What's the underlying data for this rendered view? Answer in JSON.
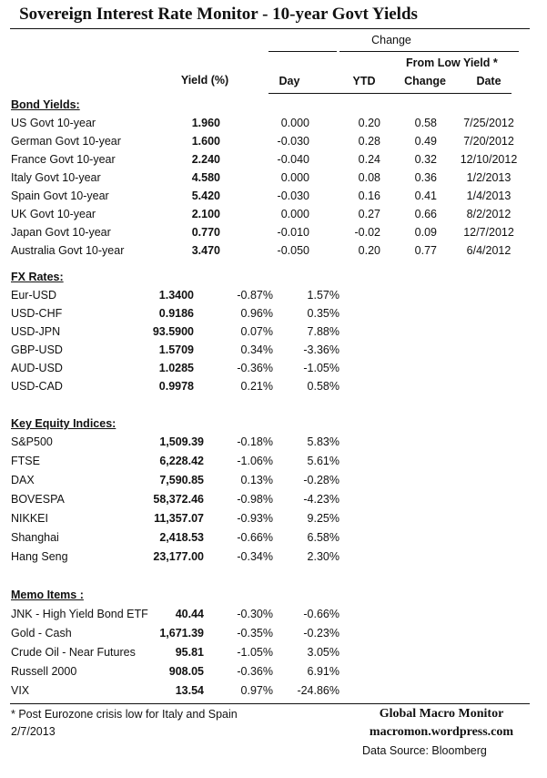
{
  "title": "Sovereign Interest Rate Monitor - 10-year Govt Yields",
  "headers": {
    "change_group": "Change",
    "from_low": "From Low Yield  *",
    "yield": "Yield (%)",
    "day": "Day",
    "ytd": "YTD",
    "low_change": "Change",
    "low_date": "Date"
  },
  "bond_yields": {
    "label": "Bond Yields:",
    "rows": [
      {
        "name": "US Govt 10-year",
        "yield": "1.960",
        "day": "0.000",
        "ytd": "0.20",
        "low_change": "0.58",
        "low_date": "7/25/2012"
      },
      {
        "name": "German Govt 10-year",
        "yield": "1.600",
        "day": "-0.030",
        "ytd": "0.28",
        "low_change": "0.49",
        "low_date": "7/20/2012"
      },
      {
        "name": "France Govt 10-year",
        "yield": "2.240",
        "day": "-0.040",
        "ytd": "0.24",
        "low_change": "0.32",
        "low_date": "12/10/2012"
      },
      {
        "name": "Italy Govt 10-year",
        "yield": "4.580",
        "day": "0.000",
        "ytd": "0.08",
        "low_change": "0.36",
        "low_date": "1/2/2013"
      },
      {
        "name": "Spain Govt 10-year",
        "yield": "5.420",
        "day": "-0.030",
        "ytd": "0.16",
        "low_change": "0.41",
        "low_date": "1/4/2013"
      },
      {
        "name": "UK Govt 10-year",
        "yield": "2.100",
        "day": "0.000",
        "ytd": "0.27",
        "low_change": "0.66",
        "low_date": "8/2/2012"
      },
      {
        "name": "Japan Govt 10-year",
        "yield": "0.770",
        "day": "-0.010",
        "ytd": "-0.02",
        "low_change": "0.09",
        "low_date": "12/7/2012"
      },
      {
        "name": "Australia Govt 10-year",
        "yield": "3.470",
        "day": "-0.050",
        "ytd": "0.20",
        "low_change": "0.77",
        "low_date": "6/4/2012"
      }
    ]
  },
  "fx_rates": {
    "label": "FX Rates:",
    "rows": [
      {
        "name": "Eur-USD",
        "value": "1.3400",
        "day": "-0.87%",
        "ytd": "1.57%"
      },
      {
        "name": "USD-CHF",
        "value": "0.9186",
        "day": "0.96%",
        "ytd": "0.35%"
      },
      {
        "name": "USD-JPN",
        "value": "93.5900",
        "day": "0.07%",
        "ytd": "7.88%"
      },
      {
        "name": "GBP-USD",
        "value": "1.5709",
        "day": "0.34%",
        "ytd": "-3.36%"
      },
      {
        "name": "AUD-USD",
        "value": "1.0285",
        "day": "-0.36%",
        "ytd": "-1.05%"
      },
      {
        "name": "USD-CAD",
        "value": "0.9978",
        "day": "0.21%",
        "ytd": "0.58%"
      }
    ]
  },
  "equity_indices": {
    "label": "Key Equity Indices:",
    "rows": [
      {
        "name": "S&P500",
        "value": "1,509.39",
        "day": "-0.18%",
        "ytd": "5.83%"
      },
      {
        "name": "FTSE",
        "value": "6,228.42",
        "day": "-1.06%",
        "ytd": "5.61%"
      },
      {
        "name": "DAX",
        "value": "7,590.85",
        "day": "0.13%",
        "ytd": "-0.28%"
      },
      {
        "name": "BOVESPA",
        "value": "58,372.46",
        "day": "-0.98%",
        "ytd": "-4.23%"
      },
      {
        "name": "NIKKEI",
        "value": "11,357.07",
        "day": "-0.93%",
        "ytd": "9.25%"
      },
      {
        "name": "Shanghai",
        "value": "2,418.53",
        "day": "-0.66%",
        "ytd": "6.58%"
      },
      {
        "name": "Hang Seng",
        "value": "23,177.00",
        "day": "-0.34%",
        "ytd": "2.30%"
      }
    ]
  },
  "memo_items": {
    "label": "Memo Items :",
    "rows": [
      {
        "name": "JNK - High Yield Bond ETF",
        "value": "40.44",
        "day": "-0.30%",
        "ytd": "-0.66%"
      },
      {
        "name": "Gold - Cash",
        "value": "1,671.39",
        "day": "-0.35%",
        "ytd": "-0.23%"
      },
      {
        "name": "Crude Oil - Near Futures",
        "value": "95.81",
        "day": "-1.05%",
        "ytd": "3.05%"
      },
      {
        "name": "Russell 2000",
        "value": "908.05",
        "day": "-0.36%",
        "ytd": "6.91%"
      },
      {
        "name": "VIX",
        "value": "13.54",
        "day": "0.97%",
        "ytd": "-24.86%"
      }
    ]
  },
  "footer": {
    "footnote": "*  Post Eurozone crisis low for Italy and Spain",
    "date": "2/7/2013",
    "brand": "Global Macro Monitor",
    "site": "macromon.wordpress.com",
    "source": "Data Source:  Bloomberg"
  }
}
